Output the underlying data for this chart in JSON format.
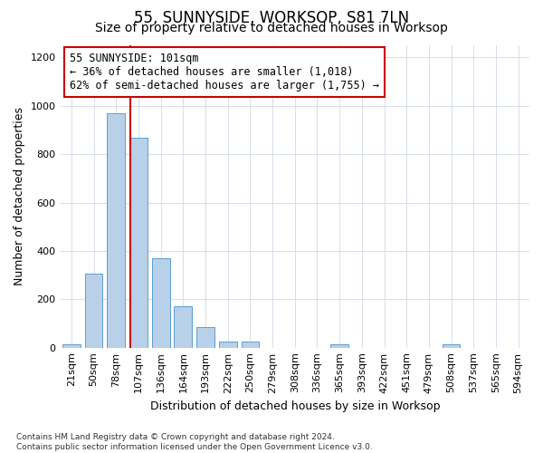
{
  "title": "55, SUNNYSIDE, WORKSOP, S81 7LN",
  "subtitle": "Size of property relative to detached houses in Worksop",
  "xlabel": "Distribution of detached houses by size in Worksop",
  "ylabel": "Number of detached properties",
  "bar_color": "#b8d0e8",
  "bar_edge_color": "#5a9fd4",
  "grid_color": "#d0d8e8",
  "vline_color": "#cc0000",
  "categories": [
    "21sqm",
    "50sqm",
    "78sqm",
    "107sqm",
    "136sqm",
    "164sqm",
    "193sqm",
    "222sqm",
    "250sqm",
    "279sqm",
    "308sqm",
    "336sqm",
    "365sqm",
    "393sqm",
    "422sqm",
    "451sqm",
    "479sqm",
    "508sqm",
    "537sqm",
    "565sqm",
    "594sqm"
  ],
  "values": [
    13,
    305,
    970,
    868,
    370,
    170,
    85,
    25,
    25,
    0,
    0,
    0,
    13,
    0,
    0,
    0,
    0,
    13,
    0,
    0,
    0
  ],
  "ylim": [
    0,
    1250
  ],
  "yticks": [
    0,
    200,
    400,
    600,
    800,
    1000,
    1200
  ],
  "vline_x": 2.63,
  "annotation_line1": "55 SUNNYSIDE: 101sqm",
  "annotation_line2": "← 36% of detached houses are smaller (1,018)",
  "annotation_line3": "62% of semi-detached houses are larger (1,755) →",
  "footnote": "Contains HM Land Registry data © Crown copyright and database right 2024.\nContains public sector information licensed under the Open Government Licence v3.0.",
  "background_color": "#ffffff",
  "title_fontsize": 12,
  "subtitle_fontsize": 10,
  "ylabel_fontsize": 9,
  "xlabel_fontsize": 9,
  "tick_fontsize": 8,
  "annot_fontsize": 8.5,
  "footnote_fontsize": 6.5
}
